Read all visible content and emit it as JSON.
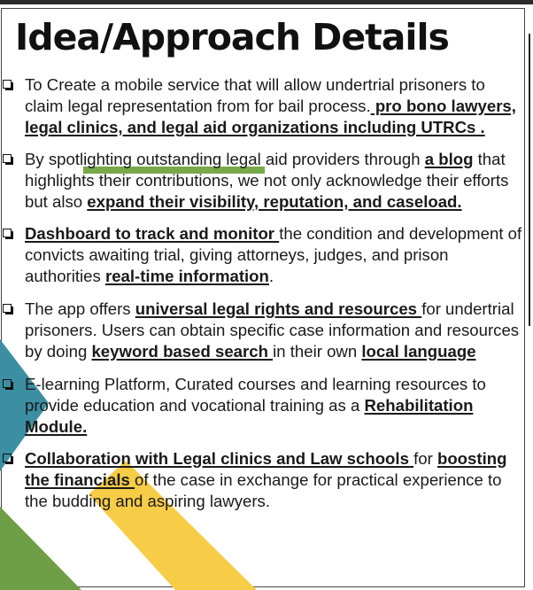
{
  "slide": {
    "title": "Idea/Approach Details",
    "colors": {
      "teal": "#3c8ea3",
      "yellow": "#f7cc47",
      "green": "#6e9e45",
      "highlight_green": "#78a84a"
    }
  },
  "bullets": [
    {
      "t1": "To Create a mobile service that will allow undertrial prisoners to claim legal representation from for bail process.",
      "e1": " pro bono lawyers, legal clinics, and legal aid organizations including UTRCs ."
    },
    {
      "t1": "By spotlighting outstanding legal aid providers through ",
      "e1": "a blog",
      "t2": " that highlights their contributions, we not only acknowledge their efforts but also ",
      "e2": "expand their visibility, reputation, and caseload."
    },
    {
      "e1": "Dashboard to track and monitor ",
      "t1": "the condition and development of convicts awaiting trial, giving attorneys, judges, and prison authorities ",
      "e2": "real-time information",
      "t2": "."
    },
    {
      "t1": "The app offers ",
      "e1": "universal legal rights and resources ",
      "t2": "for undertrial prisoners. Users can obtain specific case information and resources by doing ",
      "e2": "keyword based search ",
      "t3": "in their own ",
      "e3": "local language"
    },
    {
      "t1": "E-learning Platform, Curated courses and learning resources to provide education and vocational training as a ",
      "e1": "Rehabilitation Module."
    },
    {
      "e1": "Collaboration with Legal clinics and Law schools ",
      "t1": "for ",
      "e2": "boosting the financials ",
      "t2": "of the case in exchange for practical experience to the budding and aspiring lawyers."
    }
  ]
}
